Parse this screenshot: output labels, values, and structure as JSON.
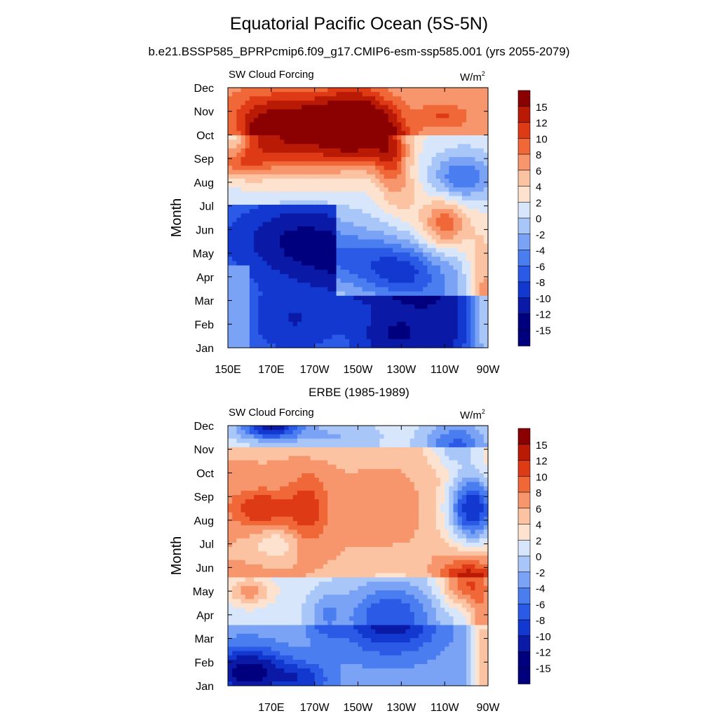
{
  "title": "Equatorial Pacific Ocean (5S-5N)",
  "subtitle": "b.e21.BSSP585_BPRPcmip6.f09_g17.CMIP6-esm-ssp585.001 (yrs 2055-2079)",
  "chart_data": [
    {
      "type": "heatmap",
      "panel_title": "",
      "left_label": "SW Cloud Forcing",
      "units": "W/m",
      "units_superscript": "2",
      "ylabel": "Month",
      "xlabel": "",
      "x_ticks": [
        "150E",
        "170E",
        "170W",
        "150W",
        "130W",
        "110W",
        "90W"
      ],
      "y_ticks": [
        "Jan",
        "Feb",
        "Mar",
        "Apr",
        "May",
        "Jun",
        "Jul",
        "Aug",
        "Sep",
        "Oct",
        "Nov",
        "Dec"
      ],
      "xlim": [
        150,
        270
      ],
      "colorbar_labels": [
        "15",
        "12",
        "10",
        "8",
        "6",
        "4",
        "2",
        "0",
        "-2",
        "-4",
        "-6",
        "-8",
        "-10",
        "-12",
        "-15"
      ],
      "contour_levels": [
        -15,
        -12,
        -10,
        -8,
        -6,
        -4,
        -2,
        0,
        2,
        4,
        6,
        8,
        10,
        12,
        15
      ],
      "features": [
        {
          "type": "box",
          "lon": [
            150,
            270
          ],
          "month": [
            1,
            3.2
          ],
          "value": -8
        },
        {
          "type": "box",
          "lon": [
            150,
            200
          ],
          "month": [
            3,
            7
          ],
          "value": -8
        },
        {
          "type": "box",
          "lon": [
            150,
            160
          ],
          "month": [
            1,
            4.5
          ],
          "value": -3
        },
        {
          "type": "box",
          "lon": [
            150,
            270
          ],
          "month": [
            10,
            12
          ],
          "value": 5
        },
        {
          "type": "blob",
          "lon": 245,
          "month": 2.5,
          "rlon": 30,
          "rmonth": 2.5,
          "amp": -5
        },
        {
          "type": "blob",
          "lon": 268,
          "month": 2.5,
          "rlon": 8,
          "rmonth": 3.0,
          "amp": 9
        },
        {
          "type": "blob",
          "lon": 180,
          "month": 2.2,
          "rlon": 16,
          "rmonth": 1.2,
          "amp": -3
        },
        {
          "type": "blob",
          "lon": 225,
          "month": 1.5,
          "rlon": 12,
          "rmonth": 0.8,
          "amp": -3
        },
        {
          "type": "blob",
          "lon": 183,
          "month": 5.5,
          "rlon": 25,
          "rmonth": 1.5,
          "amp": -6
        },
        {
          "type": "blob",
          "lon": 215,
          "month": 4.6,
          "rlon": 25,
          "rmonth": 1.3,
          "amp": -6
        },
        {
          "type": "blob",
          "lon": 232,
          "month": 4.2,
          "rlon": 16,
          "rmonth": 1.0,
          "amp": -4
        },
        {
          "type": "blob",
          "lon": 250,
          "month": 5.9,
          "rlon": 12,
          "rmonth": 1.0,
          "amp": 5
        },
        {
          "type": "blob",
          "lon": 258,
          "month": 8.2,
          "rlon": 14,
          "rmonth": 1.0,
          "amp": -7
        },
        {
          "type": "blob",
          "lon": 250,
          "month": 6.6,
          "rlon": 10,
          "rmonth": 1.0,
          "amp": 5
        },
        {
          "type": "blob",
          "lon": 180,
          "month": 10,
          "rlon": 35,
          "rmonth": 1.6,
          "amp": 14
        },
        {
          "type": "blob",
          "lon": 210,
          "month": 10.3,
          "rlon": 15,
          "rmonth": 1.4,
          "amp": 12
        },
        {
          "type": "blob",
          "lon": 225,
          "month": 9.2,
          "rlon": 8,
          "rmonth": 1.2,
          "amp": 8
        },
        {
          "type": "blob",
          "lon": 155,
          "month": 8.8,
          "rlon": 12,
          "rmonth": 0.6,
          "amp": 5
        },
        {
          "type": "blob",
          "lon": 153,
          "month": 10.0,
          "rlon": 6,
          "rmonth": 1.0,
          "amp": -5
        },
        {
          "type": "blob",
          "lon": 250,
          "month": 10.8,
          "rlon": 12,
          "rmonth": 0.6,
          "amp": 4
        },
        {
          "type": "blob",
          "lon": 230,
          "month": 7.5,
          "rlon": 10,
          "rmonth": 1.2,
          "amp": 4
        }
      ]
    },
    {
      "type": "heatmap",
      "panel_title": "ERBE (1985-1989)",
      "left_label": "SW Cloud Forcing",
      "units": "W/m",
      "units_superscript": "2",
      "ylabel": "Month",
      "xlabel": "",
      "x_ticks": [
        "",
        "170E",
        "170W",
        "150W",
        "130W",
        "110W",
        "90W"
      ],
      "y_ticks": [
        "Jan",
        "Feb",
        "Mar",
        "Apr",
        "May",
        "Jun",
        "Jul",
        "Aug",
        "Sep",
        "Oct",
        "Nov",
        "Dec"
      ],
      "xlim": [
        150,
        270
      ],
      "colorbar_labels": [
        "15",
        "12",
        "10",
        "8",
        "6",
        "4",
        "2",
        "0",
        "-2",
        "-4",
        "-6",
        "-8",
        "-10",
        "-12",
        "-15"
      ],
      "contour_levels": [
        -15,
        -12,
        -10,
        -8,
        -6,
        -4,
        -2,
        0,
        2,
        4,
        6,
        8,
        10,
        12,
        15
      ],
      "features": [
        {
          "type": "box",
          "lon": [
            150,
            270
          ],
          "month": [
            1,
            3.5
          ],
          "value": -4
        },
        {
          "type": "box",
          "lon": [
            150,
            270
          ],
          "month": [
            5.5,
            11
          ],
          "value": 5
        },
        {
          "type": "blob",
          "lon": 158,
          "month": 1.6,
          "rlon": 15,
          "rmonth": 1.0,
          "amp": -9
        },
        {
          "type": "blob",
          "lon": 185,
          "month": 1.3,
          "rlon": 12,
          "rmonth": 0.7,
          "amp": -5
        },
        {
          "type": "blob",
          "lon": 225,
          "month": 3.9,
          "rlon": 22,
          "rmonth": 1.5,
          "amp": -9
        },
        {
          "type": "blob",
          "lon": 195,
          "month": 4.0,
          "rlon": 8,
          "rmonth": 1.0,
          "amp": -4
        },
        {
          "type": "blob",
          "lon": 168,
          "month": 1.5,
          "rlon": 20,
          "rmonth": 1.0,
          "amp": -3
        },
        {
          "type": "blob",
          "lon": 165,
          "month": 8.5,
          "rlon": 14,
          "rmonth": 0.8,
          "amp": 6
        },
        {
          "type": "blob",
          "lon": 187,
          "month": 8.5,
          "rlon": 10,
          "rmonth": 1.5,
          "amp": 5
        },
        {
          "type": "blob",
          "lon": 160,
          "month": 5.0,
          "rlon": 10,
          "rmonth": 0.6,
          "amp": 6
        },
        {
          "type": "blob",
          "lon": 172,
          "month": 7.0,
          "rlon": 10,
          "rmonth": 0.6,
          "amp": -4
        },
        {
          "type": "blob",
          "lon": 260,
          "month": 5.3,
          "rlon": 12,
          "rmonth": 1.0,
          "amp": 9
        },
        {
          "type": "blob",
          "lon": 268,
          "month": 2.2,
          "rlon": 6,
          "rmonth": 2.5,
          "amp": 9
        },
        {
          "type": "blob",
          "lon": 263,
          "month": 8.5,
          "rlon": 12,
          "rmonth": 1.5,
          "amp": -16
        },
        {
          "type": "blob",
          "lon": 255,
          "month": 11.2,
          "rlon": 14,
          "rmonth": 1.0,
          "amp": -7
        },
        {
          "type": "blob",
          "lon": 170,
          "month": 11.9,
          "rlon": 14,
          "rmonth": 0.5,
          "amp": -12
        },
        {
          "type": "blob",
          "lon": 200,
          "month": 11.5,
          "rlon": 20,
          "rmonth": 0.8,
          "amp": -3
        },
        {
          "type": "blob",
          "lon": 220,
          "month": 8.5,
          "rlon": 12,
          "rmonth": 1.0,
          "amp": 2
        }
      ]
    }
  ]
}
